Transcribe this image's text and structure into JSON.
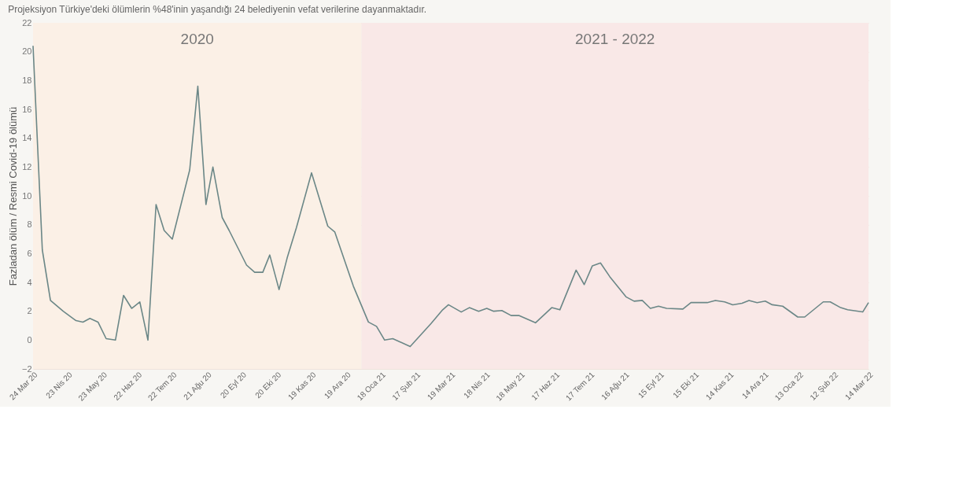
{
  "chart_data": {
    "type": "line",
    "title": "Projeksiyon Türkiye'deki ölümlerin %48'inin yaşandığı 24 belediyenin vefat verilerine dayanmaktadır.",
    "ylabel": "Fazladan ölüm / Resmi Covid-19 ölümü",
    "x": [
      "2020-03-24",
      "2020-04-01",
      "2020-04-08",
      "2020-04-19",
      "2020-04-30",
      "2020-05-06",
      "2020-05-12",
      "2020-05-19",
      "2020-05-26",
      "2020-06-03",
      "2020-06-10",
      "2020-06-17",
      "2020-06-24",
      "2020-07-01",
      "2020-07-08",
      "2020-07-15",
      "2020-07-22",
      "2020-08-06",
      "2020-08-13",
      "2020-08-20",
      "2020-08-26",
      "2020-09-03",
      "2020-09-09",
      "2020-09-24",
      "2020-10-01",
      "2020-10-08",
      "2020-10-14",
      "2020-10-22",
      "2020-10-29",
      "2020-11-06",
      "2020-11-19",
      "2020-12-03",
      "2020-12-09",
      "2020-12-25",
      "2021-01-07",
      "2021-01-14",
      "2021-01-21",
      "2021-01-28",
      "2021-02-12",
      "2021-03-02",
      "2021-03-12",
      "2021-03-17",
      "2021-03-28",
      "2021-04-04",
      "2021-04-12",
      "2021-04-19",
      "2021-04-25",
      "2021-05-02",
      "2021-05-10",
      "2021-05-17",
      "2021-05-31",
      "2021-06-14",
      "2021-06-21",
      "2021-07-05",
      "2021-07-12",
      "2021-07-19",
      "2021-07-26",
      "2021-08-03",
      "2021-08-17",
      "2021-08-24",
      "2021-08-31",
      "2021-09-07",
      "2021-09-14",
      "2021-09-21",
      "2021-10-05",
      "2021-10-12",
      "2021-10-26",
      "2021-11-02",
      "2021-11-10",
      "2021-11-17",
      "2021-11-25",
      "2021-12-01",
      "2021-12-08",
      "2021-12-15",
      "2021-12-21",
      "2021-12-30",
      "2022-01-12",
      "2022-01-18",
      "2022-02-03",
      "2022-02-09",
      "2022-02-18",
      "2022-02-24",
      "2022-03-09",
      "2022-03-14"
    ],
    "series": [
      {
        "color": "#6b8787",
        "values": [
          20.4,
          6.25,
          2.75,
          2.0,
          1.35,
          1.25,
          1.5,
          1.25,
          0.1,
          0.0,
          3.1,
          2.2,
          2.65,
          0.0,
          9.4,
          7.6,
          7.0,
          11.8,
          17.6,
          9.4,
          12.0,
          8.5,
          7.6,
          5.2,
          4.7,
          4.7,
          5.9,
          3.5,
          5.7,
          7.8,
          11.6,
          7.9,
          7.5,
          3.75,
          1.25,
          0.95,
          0.0,
          0.1,
          -0.45,
          1.15,
          2.1,
          2.45,
          1.95,
          2.25,
          2.0,
          2.2,
          2.0,
          2.05,
          1.7,
          1.7,
          1.2,
          2.25,
          2.1,
          4.85,
          3.85,
          5.15,
          5.35,
          4.4,
          3.0,
          2.7,
          2.75,
          2.2,
          2.35,
          2.2,
          2.15,
          2.6,
          2.6,
          2.75,
          2.65,
          2.45,
          2.55,
          2.75,
          2.6,
          2.7,
          2.45,
          2.35,
          1.6,
          1.6,
          2.65,
          2.65,
          2.25,
          2.1,
          1.95,
          2.6
        ]
      }
    ],
    "xlim": [
      "2020-03-24",
      "2022-03-14"
    ],
    "xticks": [
      {
        "value": "2020-03-24",
        "label": "24 Mar 20"
      },
      {
        "value": "2020-04-23",
        "label": "23 Nis 20"
      },
      {
        "value": "2020-05-23",
        "label": "23 May 20"
      },
      {
        "value": "2020-06-22",
        "label": "22 Haz 20"
      },
      {
        "value": "2020-07-22",
        "label": "22 Tem 20"
      },
      {
        "value": "2020-08-21",
        "label": "21 Ağu 20"
      },
      {
        "value": "2020-09-20",
        "label": "20 Eyl 20"
      },
      {
        "value": "2020-10-20",
        "label": "20 Eki 20"
      },
      {
        "value": "2020-11-19",
        "label": "19 Kas 20"
      },
      {
        "value": "2020-12-19",
        "label": "19 Ara 20"
      },
      {
        "value": "2021-01-18",
        "label": "18 Oca 21"
      },
      {
        "value": "2021-02-17",
        "label": "17 Şub 21"
      },
      {
        "value": "2021-03-19",
        "label": "19 Mar 21"
      },
      {
        "value": "2021-04-18",
        "label": "18 Nis 21"
      },
      {
        "value": "2021-05-18",
        "label": "18 May 21"
      },
      {
        "value": "2021-06-17",
        "label": "17 Haz 21"
      },
      {
        "value": "2021-07-17",
        "label": "17 Tem 21"
      },
      {
        "value": "2021-08-16",
        "label": "16 Ağu 21"
      },
      {
        "value": "2021-09-15",
        "label": "15 Eyl 21"
      },
      {
        "value": "2021-10-15",
        "label": "15 Eki 21"
      },
      {
        "value": "2021-11-14",
        "label": "14 Kas 21"
      },
      {
        "value": "2021-12-14",
        "label": "14 Ara 21"
      },
      {
        "value": "2022-01-13",
        "label": "13 Oca 22"
      },
      {
        "value": "2022-02-12",
        "label": "12 Şub 22"
      },
      {
        "value": "2022-03-14",
        "label": "14 Mar 22"
      }
    ],
    "ylim": [
      -2,
      22
    ],
    "yticks": [
      -2,
      0,
      2,
      4,
      6,
      8,
      10,
      12,
      14,
      16,
      18,
      20,
      22
    ],
    "grid": "y",
    "line_style": "solid",
    "bands": [
      {
        "axis": "x",
        "from": "2020-03-24",
        "to": "2021-01-01",
        "label": "2020",
        "color": "#fbf0e6"
      },
      {
        "axis": "x",
        "from": "2021-01-01",
        "to": "2022-03-14",
        "label": "2021 - 2022",
        "color": "#f9e8e7"
      }
    ]
  }
}
